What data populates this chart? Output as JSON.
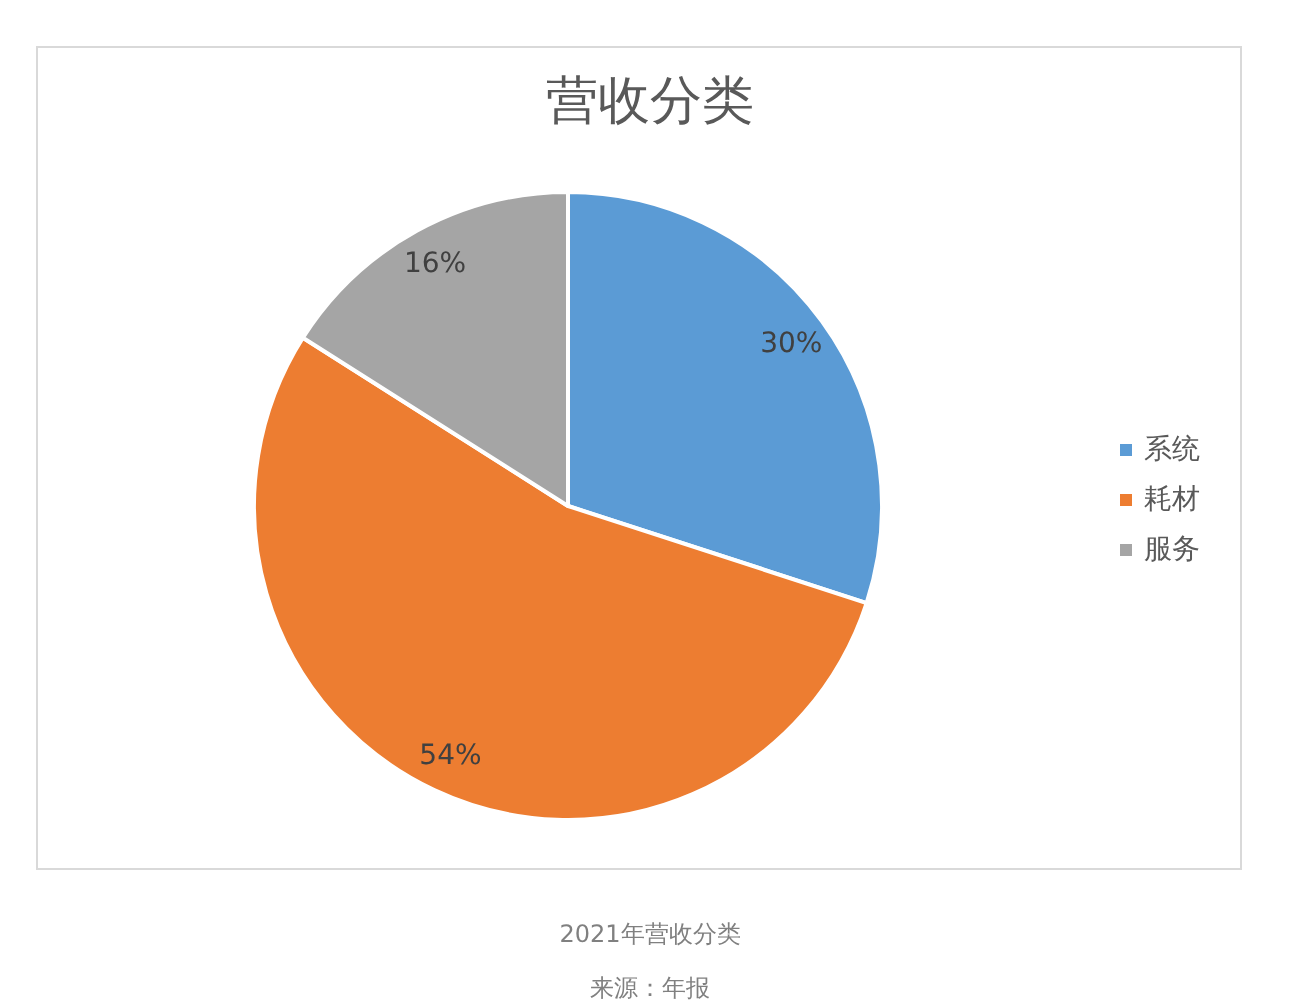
{
  "chart_data": {
    "type": "pie",
    "title": "营收分类",
    "categories": [
      "系统",
      "耗材",
      "服务"
    ],
    "values": [
      30,
      54,
      16
    ],
    "colors": [
      "#5b9bd5",
      "#ed7d31",
      "#a5a5a5"
    ],
    "value_labels": [
      "30%",
      "54%",
      "16%"
    ],
    "legend": "right",
    "annotations": [
      "2021年营收分类",
      "来源：年报"
    ]
  }
}
